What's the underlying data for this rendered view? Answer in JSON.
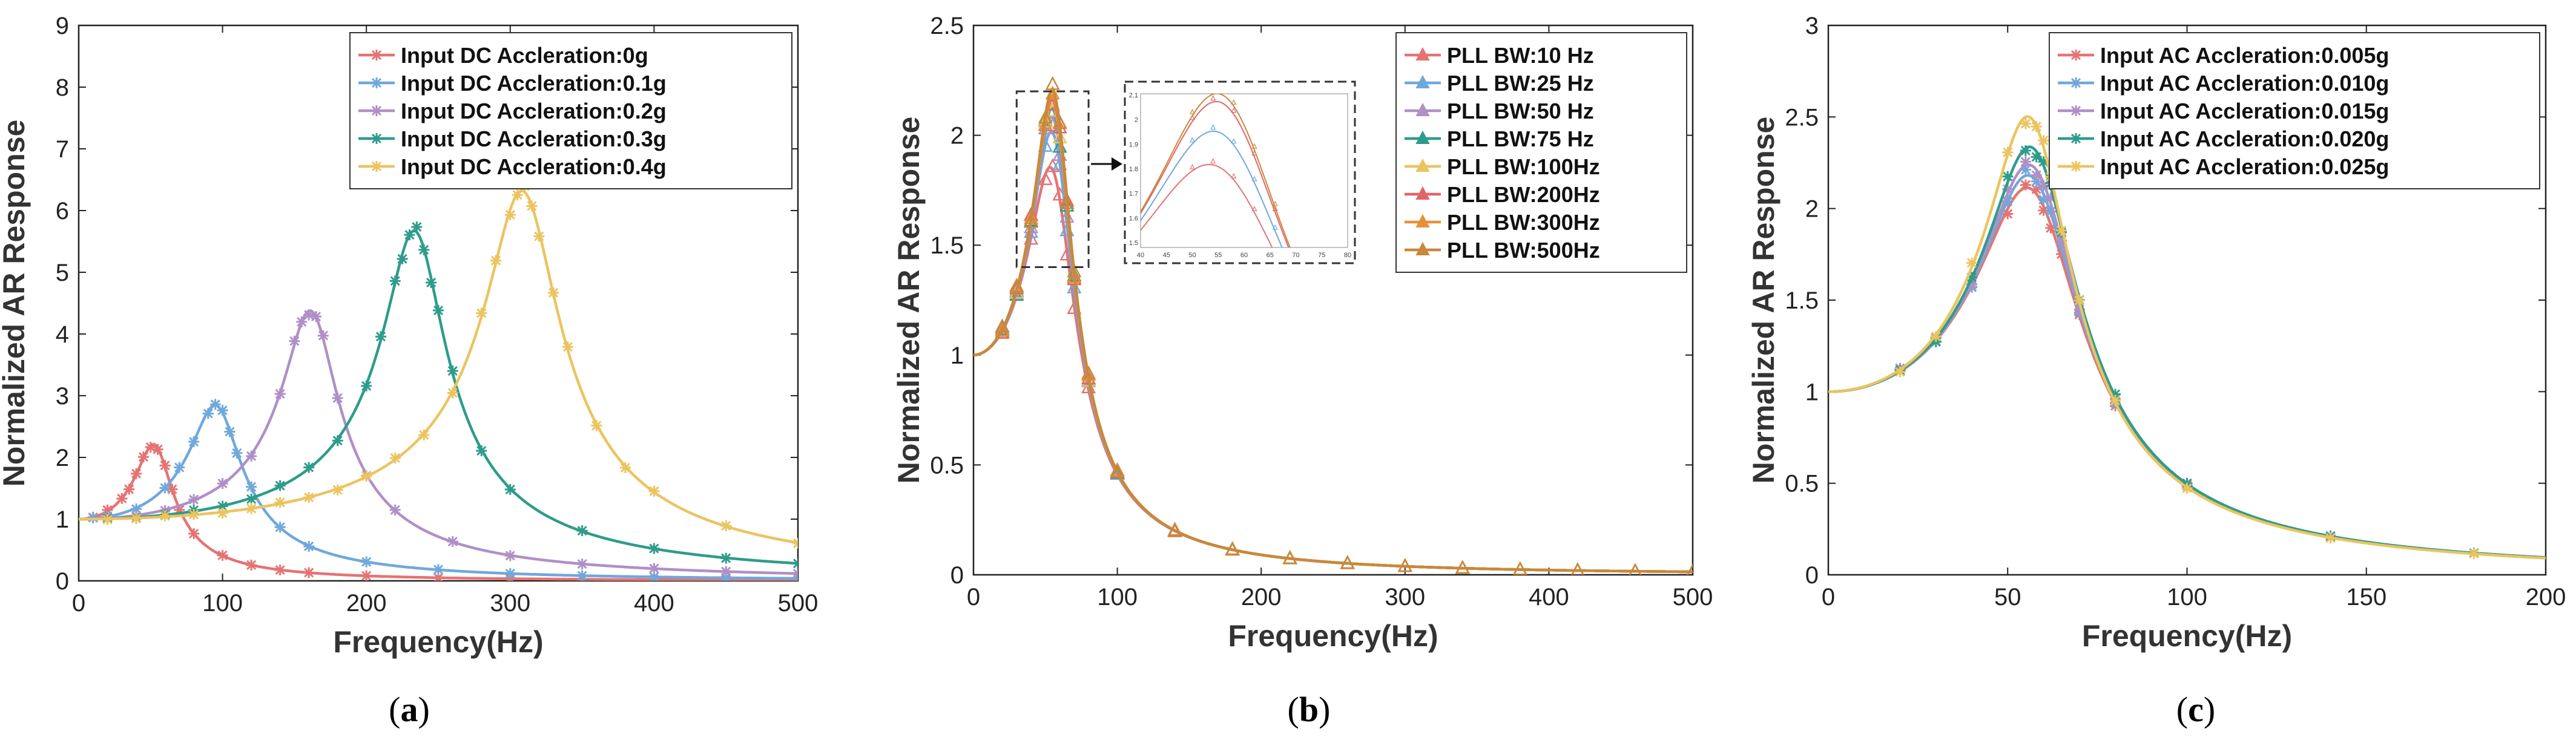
{
  "chart_data": [
    {
      "type": "line",
      "panel": "a",
      "caption_open": "(",
      "caption_letter": "a",
      "caption_close": ")",
      "xlabel": "Frequency(Hz)",
      "ylabel": "Normalized AR Response",
      "xlim": [
        0,
        500
      ],
      "ylim": [
        0,
        9
      ],
      "xticks": [
        0,
        100,
        200,
        300,
        400,
        500
      ],
      "yticks": [
        0,
        1,
        2,
        3,
        4,
        5,
        6,
        7,
        8,
        9
      ],
      "legend_position": "top-right",
      "marker": "asterisk",
      "series": [
        {
          "name": "Input DC Accleration:0g",
          "color": "#E57373",
          "f0": 55,
          "peak": 2.15
        },
        {
          "name": "Input DC Accleration:0.1g",
          "color": "#6FA8DC",
          "f0": 98,
          "peak": 2.8
        },
        {
          "name": "Input DC Accleration:0.2g",
          "color": "#B08FC7",
          "f0": 163,
          "peak": 4.35
        },
        {
          "name": "Input DC Accleration:0.3g",
          "color": "#2E9C8A",
          "f0": 235,
          "peak": 5.65
        },
        {
          "name": "Input DC Accleration:0.4g",
          "color": "#EBC460",
          "f0": 310,
          "peak": 6.3
        }
      ],
      "markers_x": {
        "0": [
          10,
          20,
          30,
          35,
          40,
          45,
          50,
          55,
          60,
          65,
          70,
          80,
          100,
          120,
          140,
          160,
          200,
          250,
          300,
          350,
          400,
          450,
          500
        ],
        "1": [
          10,
          20,
          40,
          60,
          70,
          80,
          90,
          95,
          100,
          105,
          110,
          120,
          140,
          160,
          200,
          250,
          300,
          350,
          400,
          450,
          500
        ],
        "2": [
          20,
          40,
          60,
          80,
          100,
          120,
          140,
          150,
          155,
          160,
          165,
          170,
          180,
          200,
          220,
          260,
          300,
          350,
          400,
          450,
          500
        ],
        "3": [
          20,
          40,
          60,
          80,
          100,
          120,
          140,
          160,
          180,
          200,
          210,
          220,
          225,
          230,
          235,
          240,
          245,
          250,
          260,
          280,
          300,
          350,
          400,
          450,
          500
        ],
        "4": [
          20,
          40,
          60,
          80,
          100,
          120,
          140,
          160,
          180,
          200,
          220,
          240,
          260,
          280,
          290,
          300,
          305,
          310,
          315,
          320,
          330,
          340,
          360,
          380,
          400,
          450,
          500
        ]
      }
    },
    {
      "type": "line",
      "panel": "b",
      "caption_open": "(",
      "caption_letter": "b",
      "caption_close": ")",
      "xlabel": "Frequency(Hz)",
      "ylabel": "Normalized AR Response",
      "xlim": [
        0,
        500
      ],
      "ylim": [
        0,
        2.5
      ],
      "xticks": [
        0,
        100,
        200,
        300,
        400,
        500
      ],
      "yticks": [
        0,
        0.5,
        1,
        1.5,
        2,
        2.5
      ],
      "yticklabels": [
        "0",
        "0.5",
        "1",
        "1.5",
        "2",
        "2.5"
      ],
      "legend_position": "top-right",
      "marker": "triangle",
      "series": [
        {
          "name": "PLL BW:10 Hz",
          "color": "#E57373",
          "f0": 58,
          "peak": 1.78
        },
        {
          "name": "PLL BW:25 Hz",
          "color": "#6FA8DC",
          "f0": 58,
          "peak": 1.95
        },
        {
          "name": "PLL BW:50 Hz",
          "color": "#B08FC7",
          "f0": 58,
          "peak": 2.02
        },
        {
          "name": "PLL BW:75 Hz",
          "color": "#2E9C8A",
          "f0": 58,
          "peak": 2.06
        },
        {
          "name": "PLL BW:100Hz",
          "color": "#EBC460",
          "f0": 58,
          "peak": 2.08
        },
        {
          "name": "PLL BW:200Hz",
          "color": "#E06666",
          "f0": 58,
          "peak": 2.1
        },
        {
          "name": "PLL BW:300Hz",
          "color": "#E69138",
          "f0": 58,
          "peak": 2.12
        },
        {
          "name": "PLL BW:500Hz",
          "color": "#C8893A",
          "f0": 58,
          "peak": 2.14
        }
      ],
      "markers_x": [
        20,
        30,
        40,
        50,
        55,
        60,
        65,
        70,
        80,
        100,
        140,
        180,
        220,
        260,
        300,
        340,
        380,
        420,
        460,
        500
      ],
      "inset_xticks": [
        "40",
        "45",
        "50",
        "55",
        "60",
        "65",
        "70",
        "75",
        "80"
      ],
      "inset_yticks": [
        "2.1",
        "2",
        "1.9",
        "1.8",
        "1.7",
        "1.6",
        "1.5"
      ]
    },
    {
      "type": "line",
      "panel": "c",
      "caption_open": "(",
      "caption_letter": "c",
      "caption_close": ")",
      "xlabel": "Frequency(Hz)",
      "ylabel": "Normalized AR Response",
      "xlim": [
        0,
        200
      ],
      "ylim": [
        0,
        3
      ],
      "xticks": [
        0,
        50,
        100,
        150,
        200
      ],
      "yticks": [
        0,
        0.5,
        1,
        1.5,
        2,
        2.5,
        3
      ],
      "yticklabels": [
        "0",
        "0.5",
        "1",
        "1.5",
        "2",
        "2.5",
        "3"
      ],
      "legend_position": "top-right",
      "marker": "asterisk",
      "series": [
        {
          "name": "Input AC Accleration:0.005g",
          "color": "#E57373",
          "f0": 59,
          "peak": 2.05
        },
        {
          "name": "Input AC Accleration:0.010g",
          "color": "#6FA8DC",
          "f0": 59,
          "peak": 2.12
        },
        {
          "name": "Input AC Accleration:0.015g",
          "color": "#B08FC7",
          "f0": 59,
          "peak": 2.18
        },
        {
          "name": "Input AC Accleration:0.020g",
          "color": "#2E9C8A",
          "f0": 59,
          "peak": 2.28
        },
        {
          "name": "Input AC Accleration:0.025g",
          "color": "#EBC460",
          "f0": 58,
          "peak": 2.45
        }
      ],
      "markers_x": [
        20,
        30,
        40,
        50,
        55,
        58,
        60,
        62,
        65,
        70,
        80,
        100,
        140,
        180
      ]
    }
  ]
}
